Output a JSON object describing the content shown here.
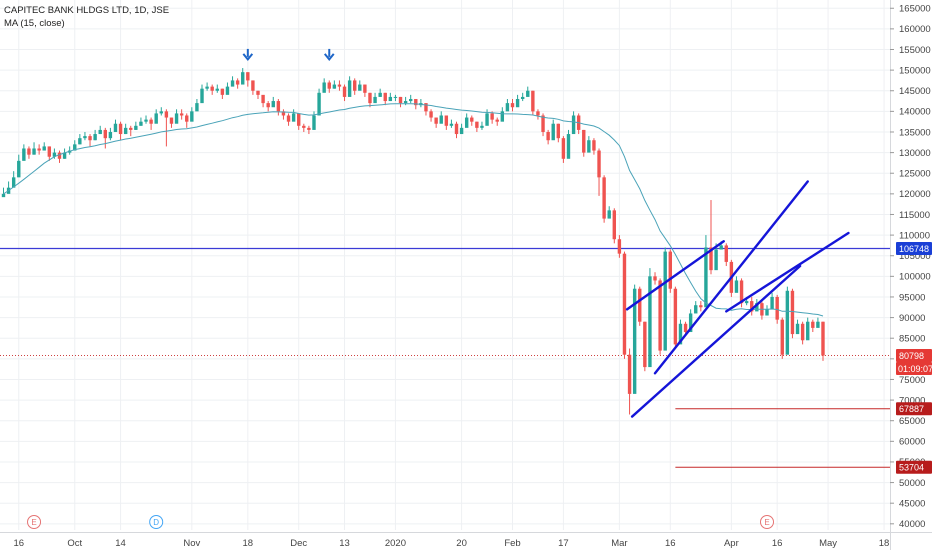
{
  "legend": {
    "symbol_line": "CAPITEC BANK HLDGS LTD, 1D, JSE",
    "indicator": "MA (15, close)"
  },
  "colors": {
    "up": "#26a69a",
    "down": "#ef5350",
    "ma": "#4aa3b8",
    "trend": "#1515d8",
    "hline_blue": "#3b3bd6",
    "hline_red": "#c62828",
    "price_tag": "#e53935",
    "level_tag_red": "#b71c1c",
    "level_tag_blue": "#1a3fd6",
    "grid": "#eef0f3",
    "axis_text": "#444444"
  },
  "chart_data": {
    "type": "candlestick",
    "title": "CAPITEC BANK HLDGS LTD, 1D, JSE",
    "indicator": "MA (15, close)",
    "ylim": [
      38500,
      167000
    ],
    "y_ticks": [
      40000,
      45000,
      50000,
      55000,
      60000,
      65000,
      70000,
      75000,
      80000,
      85000,
      90000,
      95000,
      100000,
      105000,
      110000,
      115000,
      120000,
      125000,
      130000,
      135000,
      140000,
      145000,
      150000,
      155000,
      160000,
      165000
    ],
    "x_labels": [
      {
        "label": "16",
        "bar": 3
      },
      {
        "label": "Oct",
        "bar": 14
      },
      {
        "label": "14",
        "bar": 23
      },
      {
        "label": "Nov",
        "bar": 37
      },
      {
        "label": "18",
        "bar": 48
      },
      {
        "label": "Dec",
        "bar": 58
      },
      {
        "label": "13",
        "bar": 67
      },
      {
        "label": "2020",
        "bar": 77
      },
      {
        "label": "20",
        "bar": 90
      },
      {
        "label": "Feb",
        "bar": 100
      },
      {
        "label": "17",
        "bar": 110
      },
      {
        "label": "Mar",
        "bar": 121
      },
      {
        "label": "16",
        "bar": 131
      },
      {
        "label": "Apr",
        "bar": 143
      },
      {
        "label": "16",
        "bar": 152
      },
      {
        "label": "May",
        "bar": 162
      },
      {
        "label": "18",
        "bar": 173
      }
    ],
    "close": [
      120000,
      121500,
      124000,
      128000,
      131000,
      129500,
      131000,
      130500,
      131500,
      129000,
      130000,
      128500,
      130000,
      130500,
      132000,
      133500,
      134000,
      133000,
      134500,
      135500,
      133500,
      135000,
      137000,
      134500,
      136000,
      135500,
      136500,
      137500,
      138000,
      137000,
      139500,
      140000,
      138500,
      137000,
      139500,
      139000,
      137500,
      140000,
      142000,
      145500,
      146000,
      145000,
      145500,
      144000,
      146000,
      147500,
      146500,
      149500,
      147500,
      145000,
      144000,
      142000,
      141000,
      142500,
      140000,
      139000,
      137500,
      139500,
      136500,
      136000,
      135500,
      139000,
      144500,
      147000,
      145500,
      146500,
      146000,
      143500,
      147500,
      145000,
      146500,
      144500,
      142000,
      143500,
      144500,
      142500,
      143500,
      143500,
      142000,
      142500,
      143000,
      141500,
      142000,
      140000,
      138500,
      137000,
      139000,
      136500,
      137000,
      134500,
      136000,
      138500,
      137500,
      136000,
      136500,
      139500,
      138000,
      137500,
      140000,
      142000,
      141000,
      143000,
      143500,
      145000,
      140000,
      139000,
      135000,
      133000,
      137000,
      133500,
      128500,
      134500,
      139000,
      135500,
      130000,
      133000,
      130500,
      124000,
      114000,
      116000,
      109000,
      105500,
      81000,
      71500,
      97000,
      89000,
      78000,
      100000,
      99000,
      82000,
      106000,
      97000,
      83500,
      88500,
      86500,
      91000,
      93000,
      92500,
      107000,
      101500,
      106500,
      107500,
      103500,
      96000,
      99000,
      93500,
      94000,
      91500,
      93500,
      90500,
      92000,
      95000,
      89500,
      81000,
      96500,
      86000,
      88500,
      84500,
      89000,
      87500,
      89000,
      80800
    ],
    "high_low": [
      [
        119500,
        121500
      ],
      [
        120500,
        123000
      ],
      [
        122500,
        125500
      ],
      [
        126500,
        129500
      ],
      [
        129500,
        132000
      ],
      [
        128500,
        131500
      ],
      [
        129500,
        132500
      ],
      [
        129500,
        132000
      ],
      [
        130500,
        132500
      ],
      [
        128000,
        131500
      ],
      [
        128500,
        131000
      ],
      [
        127500,
        130500
      ],
      [
        128500,
        131000
      ],
      [
        129500,
        131500
      ],
      [
        130500,
        133000
      ],
      [
        132000,
        134500
      ],
      [
        133000,
        135000
      ],
      [
        131500,
        134500
      ],
      [
        133000,
        135500
      ],
      [
        134500,
        136500
      ],
      [
        131000,
        136000
      ],
      [
        133000,
        136000
      ],
      [
        136000,
        138000
      ],
      [
        133000,
        137500
      ],
      [
        134500,
        137000
      ],
      [
        134000,
        136500
      ],
      [
        135500,
        137500
      ],
      [
        136500,
        138500
      ],
      [
        137000,
        139000
      ],
      [
        135500,
        138500
      ],
      [
        138500,
        140500
      ],
      [
        139000,
        141000
      ],
      [
        131500,
        140500
      ],
      [
        136000,
        138500
      ],
      [
        138500,
        140500
      ],
      [
        138000,
        140500
      ],
      [
        136000,
        139500
      ],
      [
        139000,
        141000
      ],
      [
        141000,
        143000
      ],
      [
        144000,
        146500
      ],
      [
        145000,
        147000
      ],
      [
        144000,
        146500
      ],
      [
        144500,
        146500
      ],
      [
        143000,
        145500
      ],
      [
        145000,
        147000
      ],
      [
        146500,
        148500
      ],
      [
        145500,
        148000
      ],
      [
        148500,
        150500
      ],
      [
        146000,
        149500
      ],
      [
        144000,
        147500
      ],
      [
        143000,
        145000
      ],
      [
        141000,
        143000
      ],
      [
        140000,
        142500
      ],
      [
        141500,
        143500
      ],
      [
        139000,
        143000
      ],
      [
        138000,
        140500
      ],
      [
        136500,
        139500
      ],
      [
        138500,
        140500
      ],
      [
        135500,
        139500
      ],
      [
        135000,
        137000
      ],
      [
        134500,
        136500
      ],
      [
        138000,
        140000
      ],
      [
        143500,
        145500
      ],
      [
        146000,
        148000
      ],
      [
        144500,
        147500
      ],
      [
        145500,
        147500
      ],
      [
        145000,
        147500
      ],
      [
        142500,
        146500
      ],
      [
        146500,
        148500
      ],
      [
        144000,
        148000
      ],
      [
        145500,
        147500
      ],
      [
        143500,
        146500
      ],
      [
        141000,
        144500
      ],
      [
        142500,
        144500
      ],
      [
        143500,
        145500
      ],
      [
        141500,
        144500
      ],
      [
        142500,
        144500
      ],
      [
        142500,
        144000
      ],
      [
        141000,
        143500
      ],
      [
        141500,
        143500
      ],
      [
        142000,
        144000
      ],
      [
        140500,
        143000
      ],
      [
        141000,
        143000
      ],
      [
        139000,
        142000
      ],
      [
        137500,
        140500
      ],
      [
        136000,
        138500
      ],
      [
        138000,
        140000
      ],
      [
        135500,
        139000
      ],
      [
        136000,
        138000
      ],
      [
        133500,
        137500
      ],
      [
        135000,
        137000
      ],
      [
        137500,
        139500
      ],
      [
        136500,
        139000
      ],
      [
        135000,
        137500
      ],
      [
        135500,
        137500
      ],
      [
        138500,
        140500
      ],
      [
        137000,
        140000
      ],
      [
        136500,
        138500
      ],
      [
        139000,
        141000
      ],
      [
        141000,
        143000
      ],
      [
        140000,
        143000
      ],
      [
        142000,
        144000
      ],
      [
        142500,
        144500
      ],
      [
        144000,
        146000
      ],
      [
        139000,
        145000
      ],
      [
        138000,
        140500
      ],
      [
        134000,
        139500
      ],
      [
        132000,
        135500
      ],
      [
        136000,
        138000
      ],
      [
        132500,
        137000
      ],
      [
        127500,
        134000
      ],
      [
        133500,
        135500
      ],
      [
        138000,
        140000
      ],
      [
        134500,
        139500
      ],
      [
        129000,
        135500
      ],
      [
        132000,
        134000
      ],
      [
        129500,
        133500
      ],
      [
        119500,
        131000
      ],
      [
        113000,
        124500
      ],
      [
        115000,
        117000
      ],
      [
        108000,
        116500
      ],
      [
        104500,
        110000
      ],
      [
        80000,
        106000
      ],
      [
        66500,
        82500
      ],
      [
        96000,
        98000
      ],
      [
        88000,
        97500
      ],
      [
        77000,
        89000
      ],
      [
        98000,
        102000
      ],
      [
        98000,
        101000
      ],
      [
        81000,
        99500
      ],
      [
        105000,
        107000
      ],
      [
        96000,
        106500
      ],
      [
        82500,
        97500
      ],
      [
        87500,
        89500
      ],
      [
        85500,
        89000
      ],
      [
        90000,
        92000
      ],
      [
        92000,
        94000
      ],
      [
        91500,
        94000
      ],
      [
        105500,
        110000
      ],
      [
        100500,
        118500
      ],
      [
        105500,
        108000
      ],
      [
        106500,
        108500
      ],
      [
        102500,
        108000
      ],
      [
        95000,
        104000
      ],
      [
        98000,
        100000
      ],
      [
        92500,
        99500
      ],
      [
        93000,
        95000
      ],
      [
        90500,
        95000
      ],
      [
        92500,
        94500
      ],
      [
        89500,
        94000
      ],
      [
        91000,
        93000
      ],
      [
        94000,
        96000
      ],
      [
        88500,
        95500
      ],
      [
        80000,
        90000
      ],
      [
        95500,
        97500
      ],
      [
        85000,
        97000
      ],
      [
        87500,
        89500
      ],
      [
        83500,
        89000
      ],
      [
        88000,
        90000
      ],
      [
        86500,
        89500
      ],
      [
        88000,
        90000
      ],
      [
        79500,
        89000
      ]
    ],
    "ma": [
      120000,
      120818,
      121690,
      122587,
      123522,
      124477,
      125455,
      126443,
      127438,
      128238,
      129001,
      129524,
      129934,
      130332,
      130731,
      130968,
      131233,
      131436,
      131671,
      131954,
      132191,
      132473,
      132802,
      133038,
      133302,
      133466,
      133715,
      133982,
      134223,
      134465,
      134740,
      135018,
      135224,
      135373,
      135593,
      135722,
      135805,
      135988,
      136202,
      136543,
      136842,
      137133,
      137447,
      137727,
      138092,
      138452,
      138701,
      139043,
      139259,
      139433,
      139560,
      139661,
      139787,
      139894,
      139869,
      139839,
      139763,
      139742,
      139492,
      139259,
      139084,
      139144,
      139386,
      139639,
      139848,
      140095,
      140325,
      140457,
      140743,
      140962,
      141186,
      141325,
      141402,
      141479,
      141577,
      141695,
      141820,
      141867,
      141863,
      141850,
      141862,
      141809,
      141678,
      141535,
      141427,
      141187,
      141017,
      140801,
      140622,
      140452,
      140300,
      140213,
      140090,
      139942,
      139784,
      139725,
      139662,
      139541,
      139442,
      139393,
      139383,
      139358,
      139273,
      139215,
      139117,
      138858,
      138596,
      138395,
      138294,
      138082,
      137679,
      137533,
      137447,
      137263,
      136922,
      136691,
      136444,
      135941,
      135100,
      134227,
      133062,
      131689,
      129013,
      125669,
      123456,
      121206,
      118418,
      116036,
      113760,
      111013,
      109232,
      107398,
      105303,
      102958,
      100625,
      98518,
      96433,
      94593,
      93560,
      92922,
      92269,
      92146,
      92111,
      91776,
      92022,
      92144,
      91963,
      91952,
      92027,
      92029,
      92028,
      92081,
      91962,
      91514,
      91540,
      91485,
      91342,
      91181,
      91039,
      90872,
      90758,
      90377
    ],
    "horizontal_levels": [
      {
        "value": 106748,
        "label": "106748",
        "style": "blue-solid"
      },
      {
        "value": 80798,
        "label": "80798",
        "style": "red-dotted"
      },
      {
        "value": 67887,
        "label": "67887",
        "style": "red-solid"
      },
      {
        "value": 53704,
        "label": "53704",
        "style": "red-solid"
      }
    ],
    "countdown_label": "01:09:07",
    "trend_lines": [
      {
        "from": [
          122.5,
          92000
        ],
        "to": [
          141.5,
          108500
        ]
      },
      {
        "from": [
          123.5,
          66000
        ],
        "to": [
          156.5,
          102500
        ]
      },
      {
        "from": [
          128,
          76500
        ],
        "to": [
          158,
          123000
        ]
      },
      {
        "from": [
          142,
          91500
        ],
        "to": [
          166,
          110500
        ]
      }
    ],
    "markers": [
      {
        "type": "arrow-down",
        "bar": 48,
        "value": 153200
      },
      {
        "type": "arrow-down",
        "bar": 64,
        "value": 153200
      }
    ],
    "events": [
      {
        "label": "E",
        "bar": 6,
        "color": "#e57373"
      },
      {
        "label": "D",
        "bar": 30,
        "color": "#42a5f5"
      },
      {
        "label": "E",
        "bar": 150,
        "color": "#e57373"
      }
    ],
    "grid": true
  }
}
